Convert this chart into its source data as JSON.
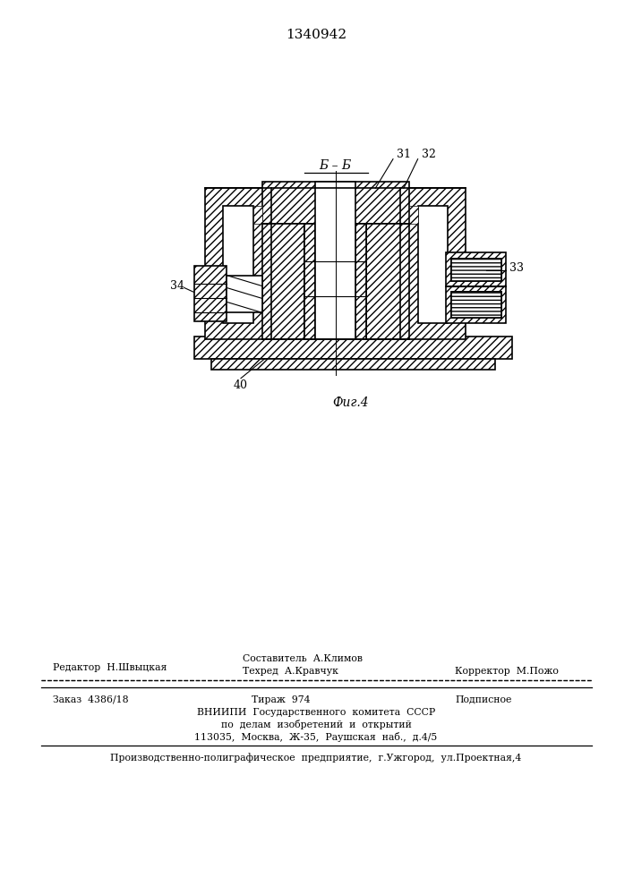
{
  "title_number": "1340942",
  "fig_label": "Фиг.4",
  "section_label": "Б – Б",
  "bg_color": "#ffffff",
  "line_color": "#000000",
  "footer": {
    "line1_left": "Редактор  Н.Швыцкая",
    "line1_center_top": "Составитель  А.Климов",
    "line1_center": "Техред  А.Кравчук",
    "line1_right": "Корректор  М.Пожо",
    "line2_left": "Заказ  4386/18",
    "line2_center": "Тираж  974",
    "line2_right": "Подписное",
    "line3": "ВНИИПИ  Государственного  комитета  СССР",
    "line4": "по  делам  изобретений  и  открытий",
    "line5": "113035,  Москва,  Ж-35,  Раушская  наб.,  д.4/5",
    "line6": "Производственно-полиграфическое  предприятие,  г.Ужгород,  ул.Проектная,4"
  }
}
